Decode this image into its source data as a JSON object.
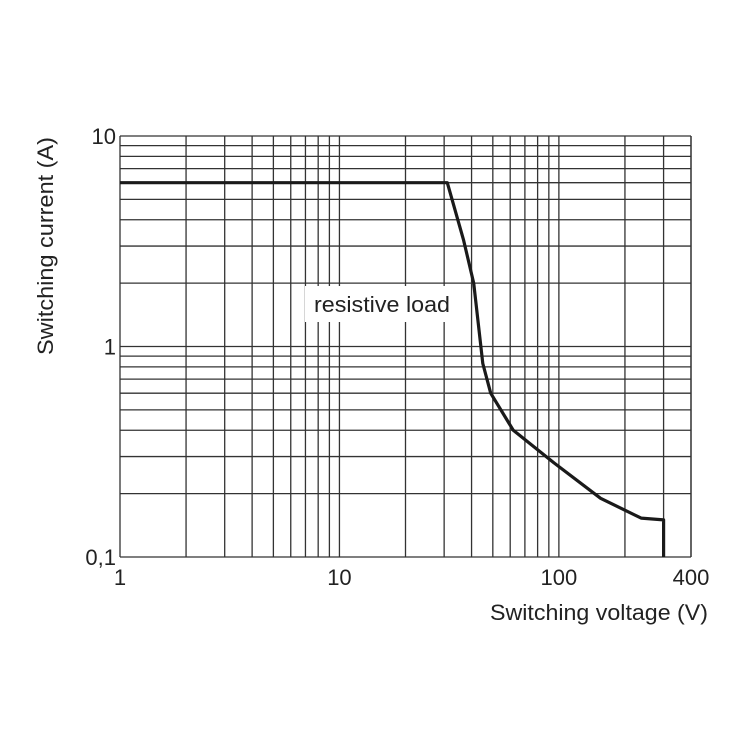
{
  "chart_data": {
    "type": "line",
    "title": "",
    "xlabel": "Switching voltage (V)",
    "ylabel": "Switching current (A)",
    "x_scale": "log",
    "y_scale": "log",
    "xlim": [
      1,
      400
    ],
    "ylim": [
      0.1,
      10
    ],
    "grid": true,
    "x_ticks": [
      {
        "value": 1,
        "label": "1"
      },
      {
        "value": 10,
        "label": "10"
      },
      {
        "value": 100,
        "label": "100"
      },
      {
        "value": 400,
        "label": "400"
      }
    ],
    "y_ticks": [
      {
        "value": 0.1,
        "label": "0,1"
      },
      {
        "value": 1,
        "label": "1"
      },
      {
        "value": 10,
        "label": "10"
      }
    ],
    "annotation": "resistive load",
    "line_color": "#1a1a1a",
    "series": [
      {
        "x": [
          1,
          31,
          36.8,
          40.9,
          45,
          48.9,
          62,
          95,
          155,
          237,
          300,
          300
        ],
        "y": [
          6,
          6,
          3.2,
          2.0,
          0.83,
          0.6,
          0.4,
          0.28,
          0.19,
          0.153,
          0.15,
          0.1
        ]
      }
    ]
  }
}
